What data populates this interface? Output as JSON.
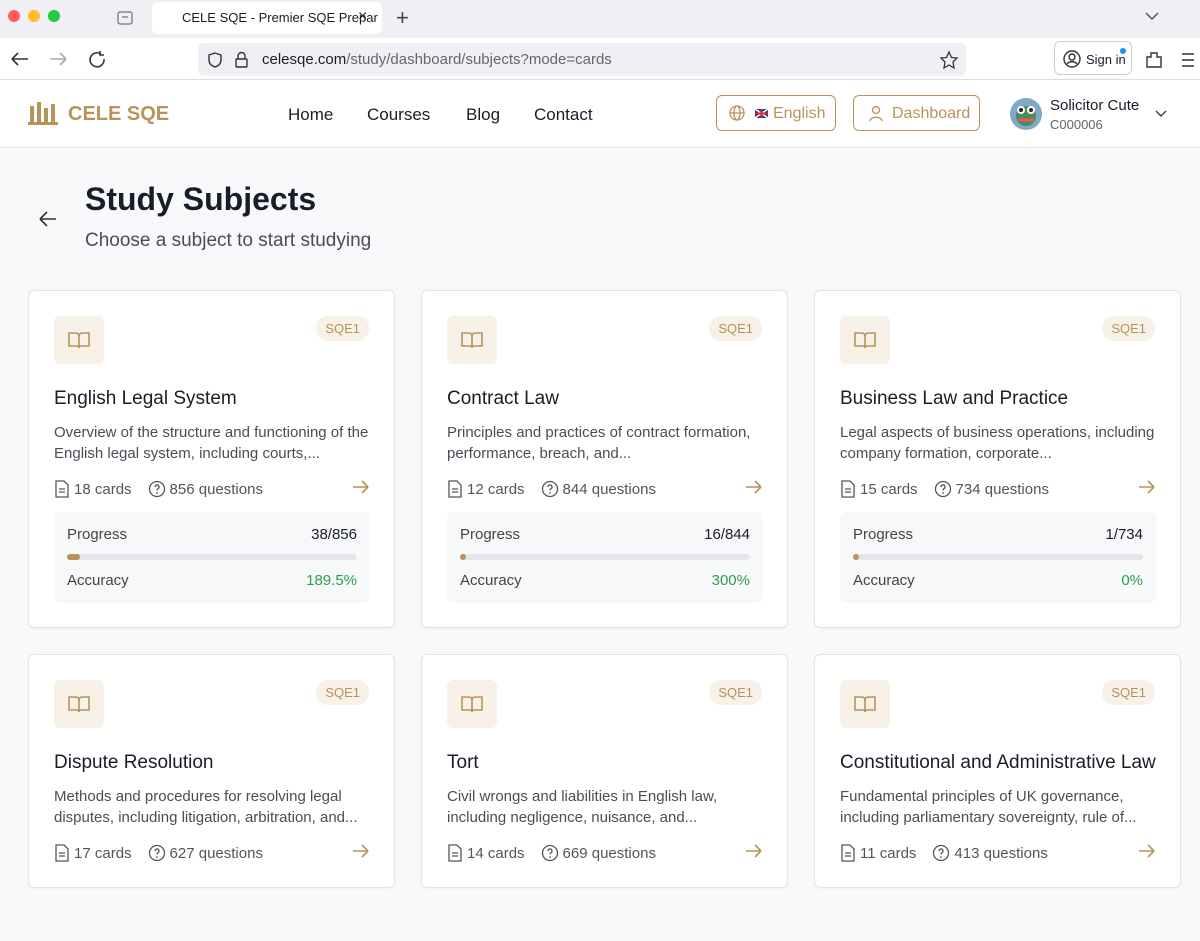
{
  "browser": {
    "tab_title": "CELE SQE - Premier SQE Prepar",
    "url_host": "celesqe.com",
    "url_path": "/study/dashboard/subjects?mode=cards",
    "sign_in": "Sign in"
  },
  "header": {
    "logo": "CELE SQE",
    "nav": [
      "Home",
      "Courses",
      "Blog",
      "Contact"
    ],
    "language": "English",
    "dashboard": "Dashboard",
    "user_name": "Solicitor Cute",
    "user_id": "C000006"
  },
  "page": {
    "title": "Study Subjects",
    "subtitle": "Choose a subject to start studying",
    "progress_label": "Progress",
    "accuracy_label": "Accuracy"
  },
  "subjects": [
    {
      "badge": "SQE1",
      "title": "English Legal System",
      "description": "Overview of the structure and functioning of the English legal system, including courts,...",
      "cards": "18 cards",
      "questions": "856 questions",
      "progress": "38/856",
      "accuracy": "189.5%"
    },
    {
      "badge": "SQE1",
      "title": "Contract Law",
      "description": "Principles and practices of contract formation, performance, breach, and...",
      "cards": "12 cards",
      "questions": "844 questions",
      "progress": "16/844",
      "accuracy": "300%"
    },
    {
      "badge": "SQE1",
      "title": "Business Law and Practice",
      "description": "Legal aspects of business operations, including company formation, corporate...",
      "cards": "15 cards",
      "questions": "734 questions",
      "progress": "1/734",
      "accuracy": "0%"
    },
    {
      "badge": "SQE1",
      "title": "Dispute Resolution",
      "description": "Methods and procedures for resolving legal disputes, including litigation, arbitration, and...",
      "cards": "17 cards",
      "questions": "627 questions"
    },
    {
      "badge": "SQE1",
      "title": "Tort",
      "description": "Civil wrongs and liabilities in English law, including negligence, nuisance, and...",
      "cards": "14 cards",
      "questions": "669 questions"
    },
    {
      "badge": "SQE1",
      "title": "Constitutional and Administrative Law",
      "description": "Fundamental principles of UK governance, including parliamentary sovereignty, rule of...",
      "cards": "11 cards",
      "questions": "413 questions"
    }
  ]
}
